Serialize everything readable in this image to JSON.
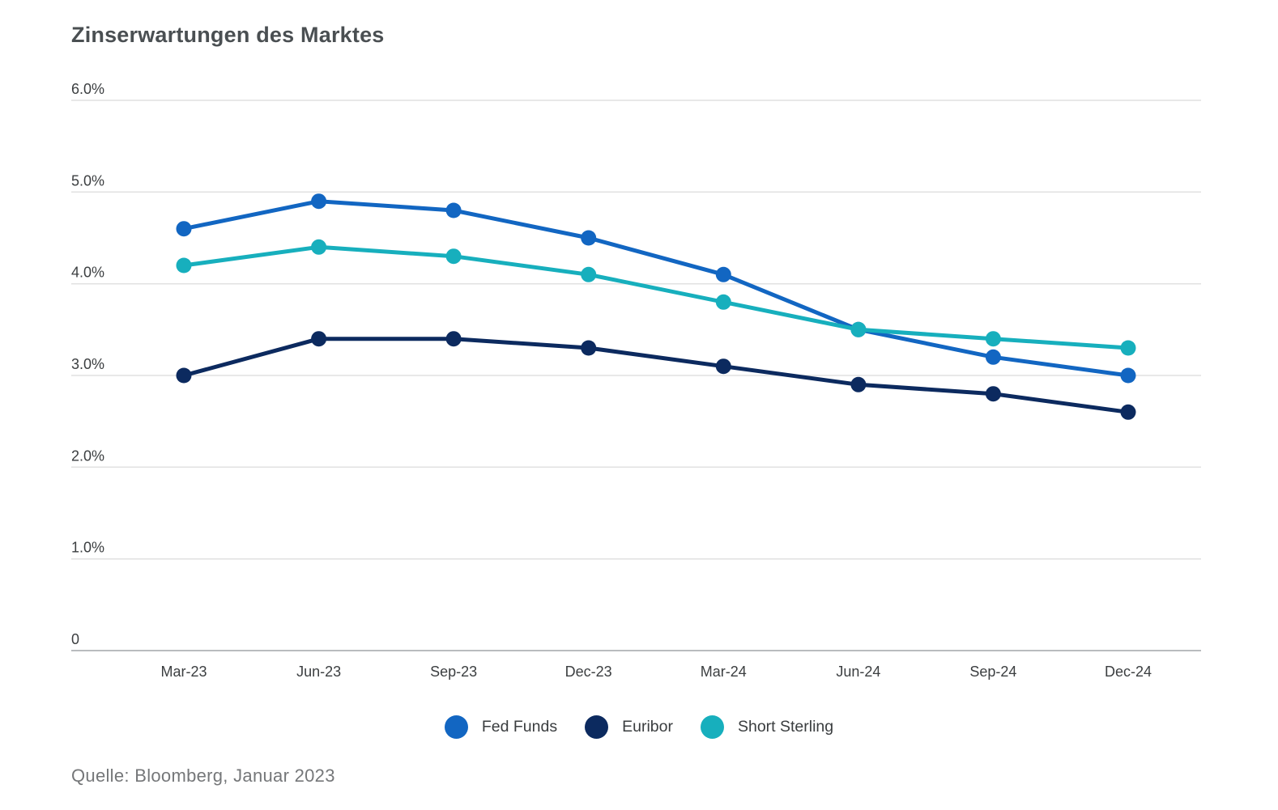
{
  "chart_data": {
    "type": "line",
    "title": "Zinserwartungen des Marktes",
    "categories": [
      "Mar-23",
      "Jun-23",
      "Sep-23",
      "Dec-23",
      "Mar-24",
      "Jun-24",
      "Sep-24",
      "Dec-24"
    ],
    "series": [
      {
        "name": "Fed Funds",
        "color": "#1266C2",
        "values": [
          4.6,
          4.9,
          4.8,
          4.5,
          4.1,
          3.5,
          3.2,
          3.0
        ]
      },
      {
        "name": "Euribor",
        "color": "#0C2A5F",
        "values": [
          3.0,
          3.4,
          3.4,
          3.3,
          3.1,
          2.9,
          2.8,
          2.6
        ]
      },
      {
        "name": "Short Sterling",
        "color": "#17AFBD",
        "values": [
          4.2,
          4.4,
          4.3,
          4.1,
          3.8,
          3.5,
          3.4,
          3.3
        ]
      }
    ],
    "ylim": [
      0,
      6
    ],
    "ytick_values": [
      0,
      1,
      2,
      3,
      4,
      5,
      6
    ],
    "ytick_labels": [
      "0",
      "1.0%",
      "2.0%",
      "3.0%",
      "4.0%",
      "5.0%",
      "6.0%"
    ],
    "grid": true,
    "legend_position": "bottom",
    "source": "Quelle: Bloomberg, Januar 2023",
    "colors": {
      "gridline": "#e1e1e1",
      "axis_line": "#b9bcbe",
      "tick_text": "#3b3e40",
      "title_text": "#4a4f52",
      "source_text": "#757779",
      "background": "#ffffff"
    }
  }
}
